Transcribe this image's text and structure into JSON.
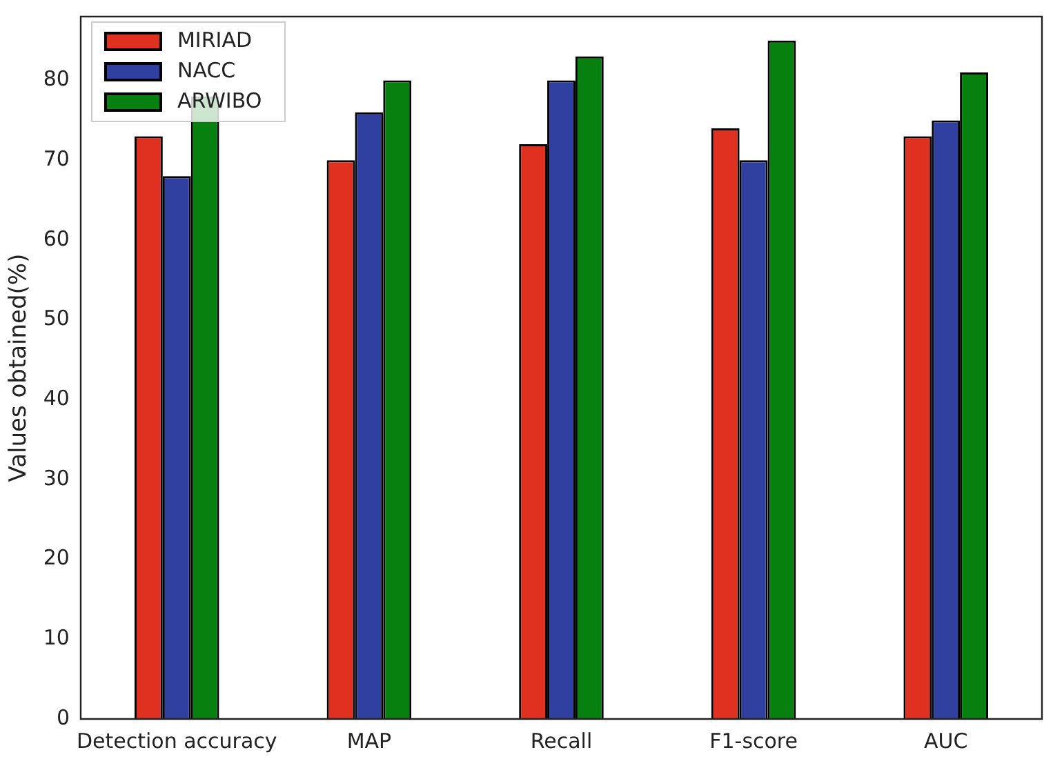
{
  "chart_data": {
    "type": "bar",
    "ylabel": "Values obtained(%)",
    "categories": [
      "Detection accuracy",
      "MAP",
      "Recall",
      "F1-score",
      "AUC"
    ],
    "series": [
      {
        "name": "MIRIAD",
        "color": "#e03020",
        "values": [
          73,
          70,
          72,
          74,
          73
        ]
      },
      {
        "name": "NACC",
        "color": "#3040a0",
        "values": [
          68,
          76,
          80,
          70,
          75
        ]
      },
      {
        "name": "ARWIBO",
        "color": "#088010",
        "values": [
          78,
          80,
          83,
          85,
          81
        ]
      }
    ],
    "ylim": [
      0,
      88
    ],
    "yticks": [
      0,
      10,
      20,
      30,
      40,
      50,
      60,
      70,
      80
    ],
    "grid": false,
    "legend": "top left"
  }
}
